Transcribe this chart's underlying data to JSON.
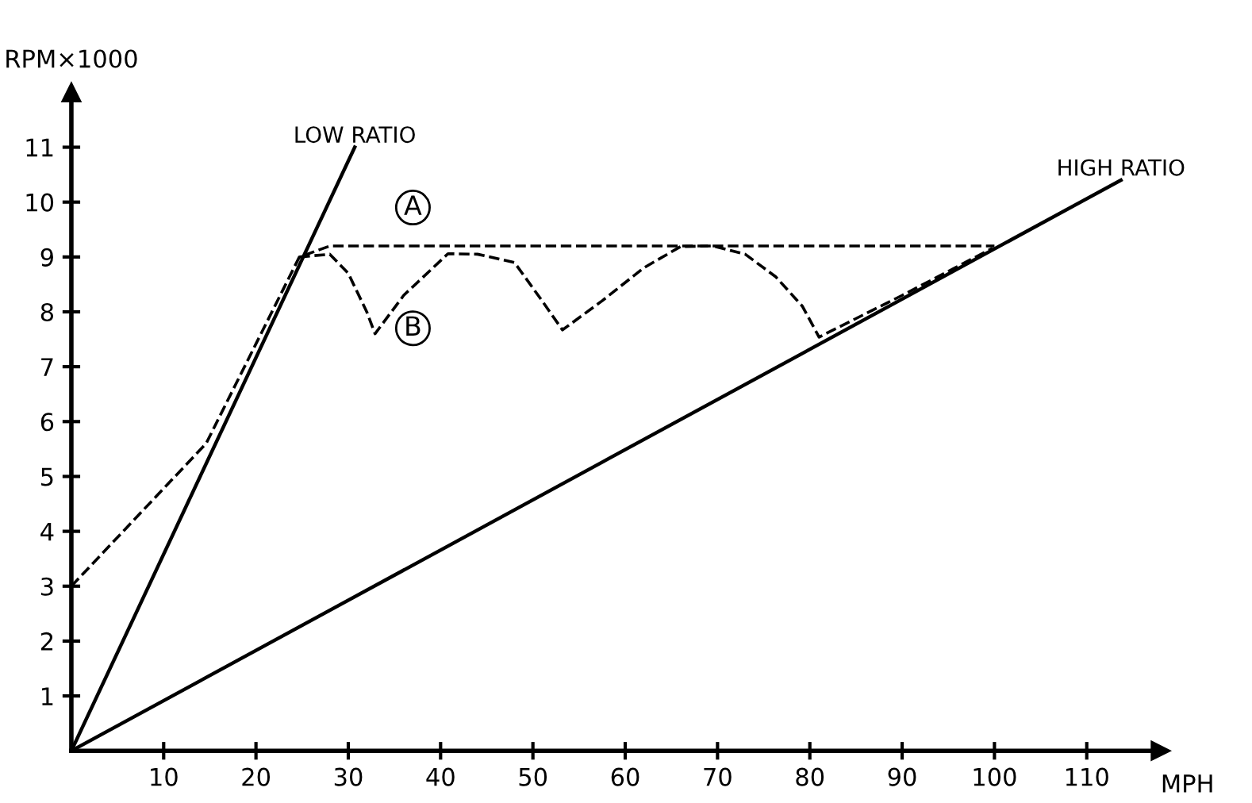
{
  "chart_data": {
    "type": "line",
    "xlabel": "MPH",
    "ylabel": "RPM×1000",
    "xlim": [
      0,
      118
    ],
    "ylim": [
      0,
      12
    ],
    "xticks": [
      10,
      20,
      30,
      40,
      50,
      60,
      70,
      80,
      90,
      100,
      110
    ],
    "yticks": [
      1,
      2,
      3,
      4,
      5,
      6,
      7,
      8,
      9,
      10,
      11
    ],
    "grid": false,
    "legend": false,
    "marker": "none",
    "series": [
      {
        "name": "LOW RATIO",
        "color": "#000000",
        "line_style": "solid",
        "x": [
          0,
          30.7
        ],
        "values": [
          0,
          11.0
        ]
      },
      {
        "name": "HIGH RATIO",
        "color": "#000000",
        "line_style": "solid",
        "x": [
          0,
          113.7
        ],
        "values": [
          0,
          10.4
        ]
      },
      {
        "color": "#000000",
        "line_style": "dashed",
        "x": [
          0,
          14.6,
          24.7,
          28,
          100
        ],
        "values": [
          3,
          5.6,
          9.0,
          9.2,
          9.2
        ]
      },
      {
        "color": "#000000",
        "line_style": "dashed",
        "x": [
          24.7,
          28,
          30,
          32,
          32.9,
          36,
          40.8,
          44,
          48,
          51,
          53.2,
          57.5,
          62,
          66,
          69.5,
          73,
          76.3,
          79.2,
          81,
          90,
          99.8
        ],
        "values": [
          9.0,
          9.05,
          8.7,
          8.0,
          7.6,
          8.3,
          9.06,
          9.05,
          8.9,
          8.2,
          7.67,
          8.2,
          8.8,
          9.19,
          9.2,
          9.05,
          8.64,
          8.1,
          7.54,
          8.3,
          9.16
        ]
      }
    ],
    "annotations": [
      {
        "text": "A",
        "x": 37,
        "y": 9.9
      },
      {
        "text": "B",
        "x": 37,
        "y": 7.7
      }
    ]
  }
}
